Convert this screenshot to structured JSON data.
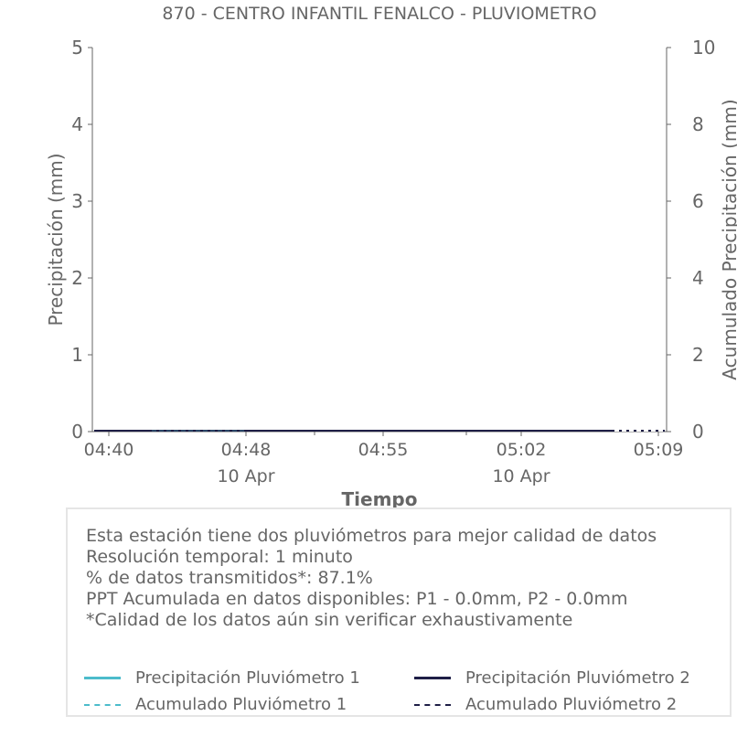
{
  "chart_data": {
    "type": "line",
    "title": "870 - CENTRO INFANTIL FENALCO - PLUVIOMETRO",
    "xlabel": "Tiempo",
    "ylabel": "Precipitación (mm)",
    "y2label": "Acumulado Precipitación (mm)",
    "ylim": [
      0,
      5
    ],
    "y2lim": [
      0,
      10
    ],
    "yticks": [
      "0",
      "1",
      "2",
      "3",
      "4",
      "5"
    ],
    "y2ticks": [
      "0",
      "2",
      "4",
      "6",
      "8",
      "10"
    ],
    "xticks": [
      {
        "time": "04:40",
        "date": ""
      },
      {
        "time": "04:48",
        "date": "10 Apr"
      },
      {
        "time": "04:55",
        "date": ""
      },
      {
        "time": "05:02",
        "date": "10 Apr"
      },
      {
        "time": "05:09",
        "date": ""
      }
    ],
    "xrange": [
      "04:39",
      "05:09"
    ],
    "grid": false,
    "series": [
      {
        "name": "Precipitación Pluviómetro 1",
        "color": "#4cbccb",
        "style": "solid",
        "axis": "y",
        "values": "all 0"
      },
      {
        "name": "Precipitación Pluviómetro 2",
        "color": "#1e1e46",
        "style": "solid",
        "axis": "y",
        "values": "all 0"
      },
      {
        "name": "Acumulado Pluviómetro 1",
        "color": "#4cbccb",
        "style": "dashed",
        "axis": "y2",
        "values": "all 0"
      },
      {
        "name": "Acumulado Pluviómetro 2",
        "color": "#1e1e46",
        "style": "dashed",
        "axis": "y2",
        "values": "all 0"
      }
    ]
  },
  "info": {
    "lines": [
      "Esta estación tiene dos pluviómetros para mejor calidad de datos",
      "Resolución temporal: 1 minuto",
      "% de datos transmitidos*: 87.1%",
      "PPT Acumulada en datos disponibles: P1 - 0.0mm, P2 - 0.0mm",
      "*Calidad de los datos aún sin verificar exhaustivamente"
    ]
  }
}
